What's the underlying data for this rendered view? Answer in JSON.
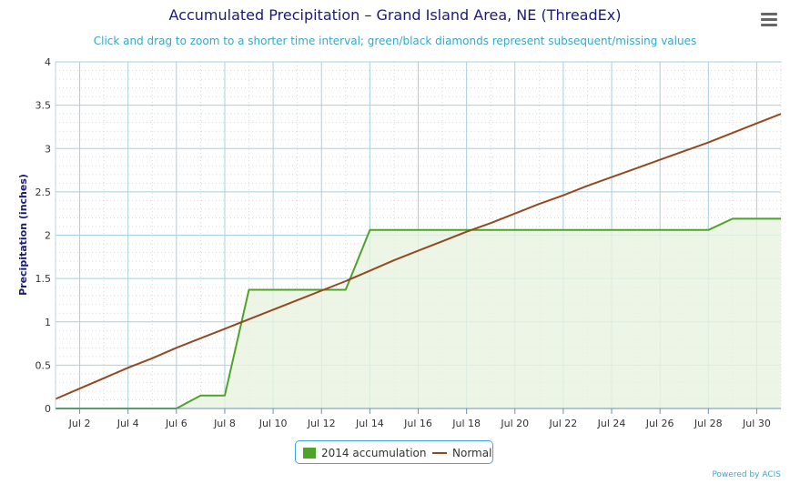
{
  "title": "Accumulated Precipitation – Grand Island Area, NE (ThreadEx)",
  "subtitle": "Click and drag to zoom to a shorter time interval; green/black diamonds represent subsequent/missing values",
  "menu_icon": "hamburger-menu-icon",
  "credits": "Powered by ACIS",
  "chart_data": {
    "type": "area",
    "ylabel": "Precipitation (inches)",
    "xlabel": "",
    "xlim": [
      1,
      31
    ],
    "ylim": [
      0,
      4
    ],
    "x_ticks": [
      "Jul 2",
      "Jul 4",
      "Jul 6",
      "Jul 8",
      "Jul 10",
      "Jul 12",
      "Jul 14",
      "Jul 16",
      "Jul 18",
      "Jul 20",
      "Jul 22",
      "Jul 24",
      "Jul 26",
      "Jul 28",
      "Jul 30"
    ],
    "x_tick_values": [
      2,
      4,
      6,
      8,
      10,
      12,
      14,
      16,
      18,
      20,
      22,
      24,
      26,
      28,
      30
    ],
    "y_ticks": [
      "0",
      "0.5",
      "1",
      "1.5",
      "2",
      "2.5",
      "3",
      "3.5",
      "4"
    ],
    "y_tick_values": [
      0,
      0.5,
      1,
      1.5,
      2,
      2.5,
      3,
      3.5,
      4
    ],
    "grid": true,
    "legend_position": "bottom-center",
    "colors": {
      "accumulation": "#4fa32a",
      "accumulation_fill": "#e8f3e1",
      "normal": "#93491f",
      "grid": "#a8cfe0",
      "title": "#1a1a7a",
      "subtitle": "#36a7c9"
    },
    "series": [
      {
        "name": "2014 accumulation",
        "type": "area",
        "x": [
          1,
          2,
          3,
          4,
          5,
          6,
          7,
          8,
          9,
          10,
          11,
          12,
          13,
          14,
          15,
          16,
          17,
          18,
          19,
          20,
          21,
          22,
          23,
          24,
          25,
          26,
          27,
          28,
          29,
          30,
          31
        ],
        "values": [
          0,
          0,
          0,
          0,
          0,
          0,
          0.15,
          0.15,
          1.37,
          1.37,
          1.37,
          1.37,
          1.37,
          2.06,
          2.06,
          2.06,
          2.06,
          2.06,
          2.06,
          2.06,
          2.06,
          2.06,
          2.06,
          2.06,
          2.06,
          2.06,
          2.06,
          2.06,
          2.19,
          2.19,
          2.19
        ]
      },
      {
        "name": "Normal",
        "type": "line",
        "x": [
          1,
          2,
          3,
          4,
          5,
          6,
          7,
          8,
          9,
          10,
          11,
          12,
          13,
          14,
          15,
          16,
          17,
          18,
          19,
          20,
          21,
          22,
          23,
          24,
          25,
          26,
          27,
          28,
          29,
          30,
          31
        ],
        "values": [
          0.11,
          0.23,
          0.35,
          0.47,
          0.58,
          0.7,
          0.81,
          0.92,
          1.03,
          1.14,
          1.25,
          1.36,
          1.47,
          1.59,
          1.71,
          1.82,
          1.93,
          2.04,
          2.14,
          2.25,
          2.36,
          2.46,
          2.57,
          2.67,
          2.77,
          2.87,
          2.97,
          3.07,
          3.18,
          3.29,
          3.4
        ]
      }
    ]
  }
}
